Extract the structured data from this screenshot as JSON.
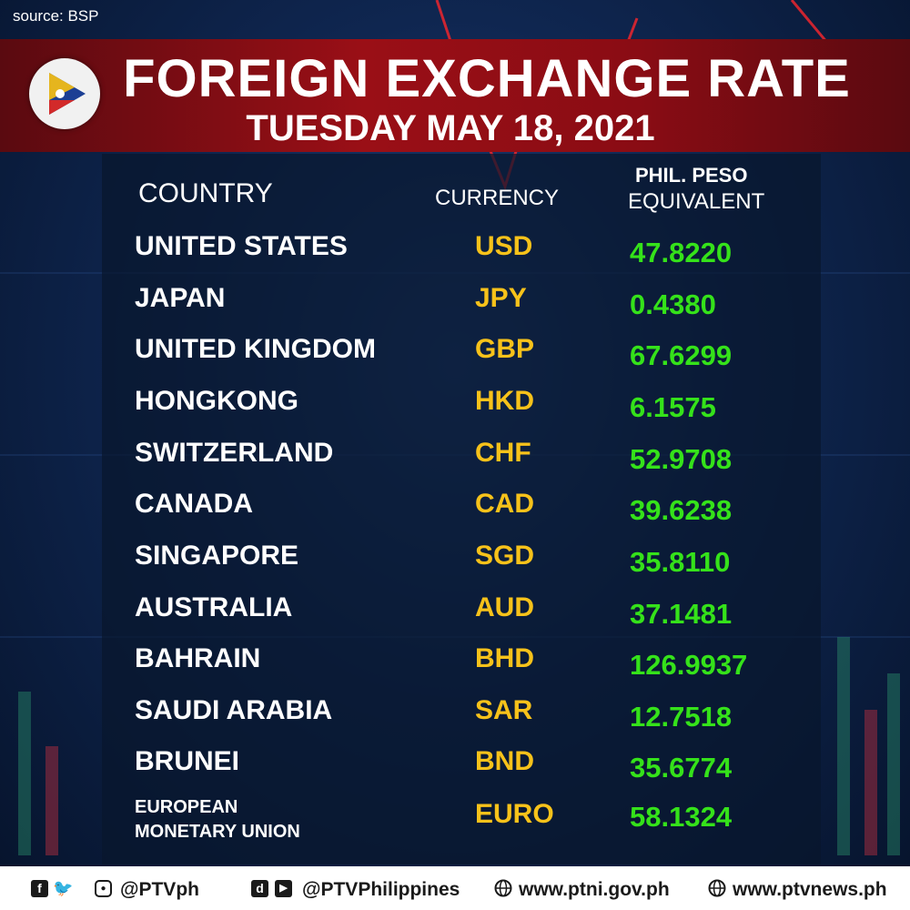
{
  "source": "source: BSP",
  "title": "FOREIGN EXCHANGE RATE",
  "date": "TUESDAY MAY 18, 2021",
  "headers": {
    "country": "COUNTRY",
    "currency": "CURRENCY",
    "peso_line1": "PHIL. PESO",
    "peso_line2": "EQUIVALENT"
  },
  "rates": [
    {
      "country": "UNITED STATES",
      "currency": "USD",
      "value": "47.8220"
    },
    {
      "country": "JAPAN",
      "currency": "JPY",
      "value": "0.4380"
    },
    {
      "country": "UNITED KINGDOM",
      "currency": "GBP",
      "value": "67.6299"
    },
    {
      "country": "HONGKONG",
      "currency": "HKD",
      "value": "6.1575"
    },
    {
      "country": "SWITZERLAND",
      "currency": "CHF",
      "value": "52.9708"
    },
    {
      "country": "CANADA",
      "currency": "CAD",
      "value": "39.6238"
    },
    {
      "country": "SINGAPORE",
      "currency": "SGD",
      "value": "35.8110"
    },
    {
      "country": "AUSTRALIA",
      "currency": "AUD",
      "value": "37.1481"
    },
    {
      "country": "BAHRAIN",
      "currency": "BHD",
      "value": "126.9937"
    },
    {
      "country": "SAUDI ARABIA",
      "currency": "SAR",
      "value": "12.7518"
    },
    {
      "country": "BRUNEI",
      "currency": "BND",
      "value": "35.6774"
    },
    {
      "country_line1": "EUROPEAN",
      "country_line2": "MONETARY UNION",
      "currency": "EURO",
      "value": "58.1324"
    }
  ],
  "footer": {
    "social1": "@PTVph",
    "social2": "@PTVPhilippines",
    "site1": "www.ptni.gov.ph",
    "site2": "www.ptvnews.ph"
  },
  "colors": {
    "banner": "#9a0f16",
    "currency": "#f7c21a",
    "value": "#35e21a",
    "text": "#ffffff"
  }
}
